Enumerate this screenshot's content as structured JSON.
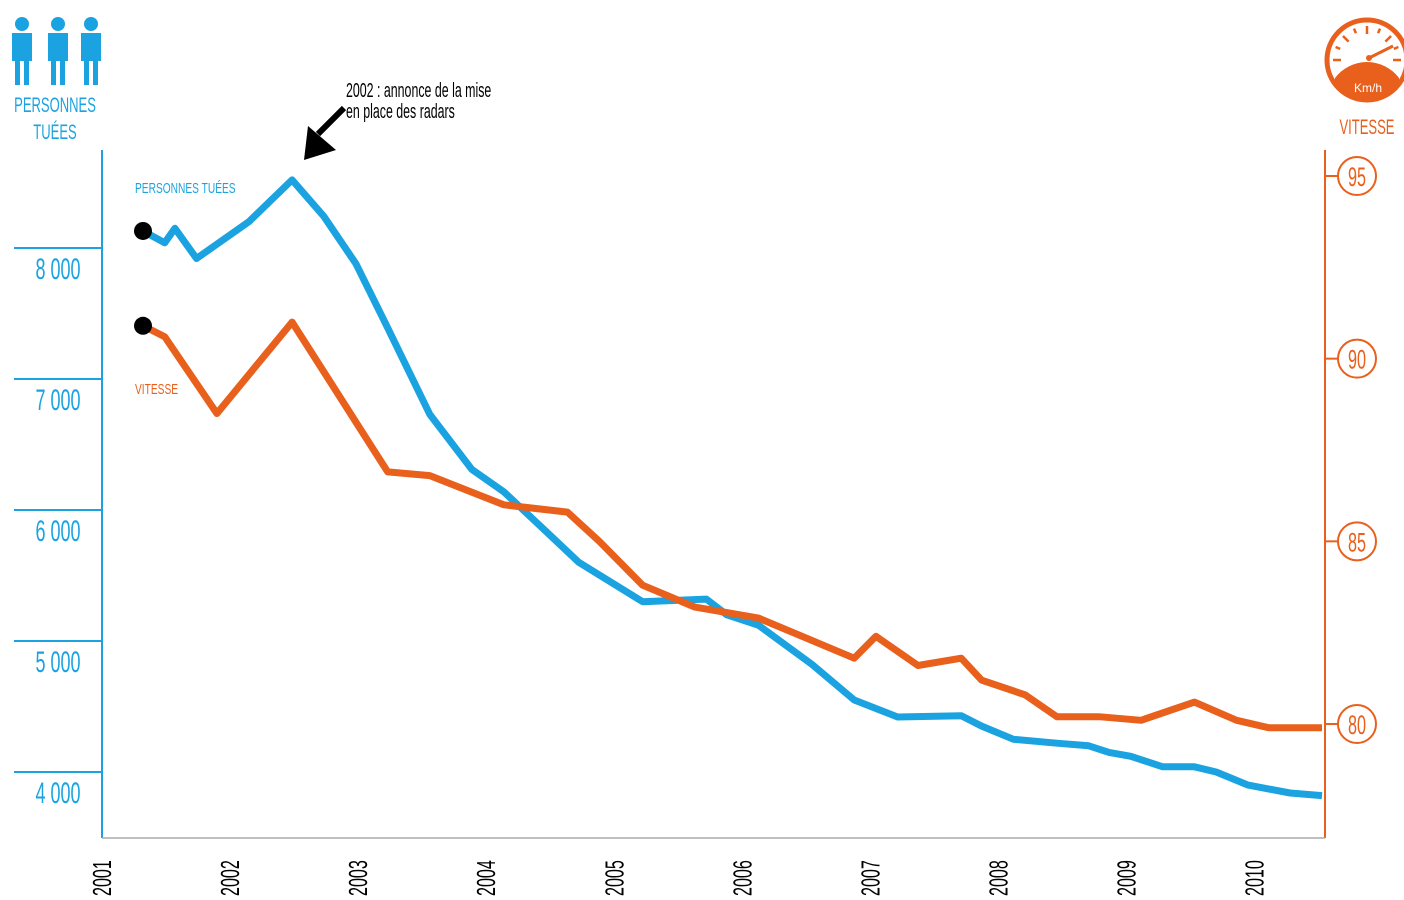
{
  "colors": {
    "left": "#1aa3e0",
    "right": "#e8601c",
    "annotation": "#000000"
  },
  "left_header": {
    "icon": "three-persons-icon",
    "line1": "PERSONNES",
    "line2": "TUÉES"
  },
  "right_header": {
    "icon": "speedometer-icon",
    "unit": "Km/h",
    "label": "VITESSE"
  },
  "annotation": {
    "line1": "2002 :  annonce de la mise",
    "line2": "en place des radars",
    "at": 2002.42
  },
  "chart_data": {
    "type": "line",
    "title": "",
    "xlabel": "",
    "x_ticks": [
      "2001",
      "2002",
      "2003",
      "2004",
      "2005",
      "2006",
      "2007",
      "2008",
      "2009",
      "2010"
    ],
    "xlim": [
      2001.0,
      2010.55
    ],
    "left_axis": {
      "ticks": [
        "8 000",
        "7 000",
        "6 000",
        "5 000",
        "4 000"
      ],
      "tick_values": [
        8000,
        7000,
        6000,
        5000,
        4000
      ],
      "ylim": [
        3500,
        8750
      ]
    },
    "right_axis": {
      "ticks": [
        "95",
        "90",
        "85",
        "80"
      ],
      "tick_values": [
        95,
        90,
        85,
        80
      ],
      "ylim": [
        76.9,
        98.4
      ]
    },
    "series": [
      {
        "name": "PERSONNES TUÉES",
        "axis": "left",
        "x": [
          2001.25,
          2001.42,
          2001.5,
          2001.67,
          2002.08,
          2002.42,
          2002.67,
          2002.92,
          2003.17,
          2003.5,
          2003.83,
          2004.08,
          2004.42,
          2004.67,
          2005.17,
          2005.67,
          2005.83,
          2006.08,
          2006.5,
          2006.83,
          2007.17,
          2007.67,
          2007.83,
          2008.08,
          2008.42,
          2008.67,
          2008.83,
          2009.0,
          2009.25,
          2009.5,
          2009.67,
          2009.92,
          2010.25,
          2010.5
        ],
        "y": [
          8130,
          8040,
          8150,
          7920,
          8200,
          8520,
          8240,
          7880,
          7390,
          6730,
          6310,
          6140,
          5830,
          5600,
          5300,
          5320,
          5200,
          5120,
          4820,
          4550,
          4420,
          4430,
          4350,
          4250,
          4220,
          4200,
          4150,
          4120,
          4040,
          4040,
          4000,
          3900,
          3840,
          3820
        ]
      },
      {
        "name": "VITESSE",
        "axis": "right",
        "x": [
          2001.25,
          2001.42,
          2001.83,
          2002.42,
          2003.17,
          2003.5,
          2004.08,
          2004.58,
          2004.83,
          2005.17,
          2005.58,
          2006.08,
          2006.83,
          2007.0,
          2007.33,
          2007.67,
          2007.83,
          2008.17,
          2008.42,
          2008.75,
          2009.08,
          2009.5,
          2009.83,
          2010.08,
          2010.5
        ],
        "y": [
          90.9,
          90.6,
          88.5,
          91.0,
          86.9,
          86.8,
          86.0,
          85.8,
          85.0,
          83.8,
          83.2,
          82.9,
          81.8,
          82.4,
          81.6,
          81.8,
          81.2,
          80.8,
          80.2,
          80.2,
          80.1,
          80.6,
          80.1,
          79.9,
          79.9
        ]
      }
    ],
    "grid": false,
    "legend": "inline labels left of lines"
  }
}
